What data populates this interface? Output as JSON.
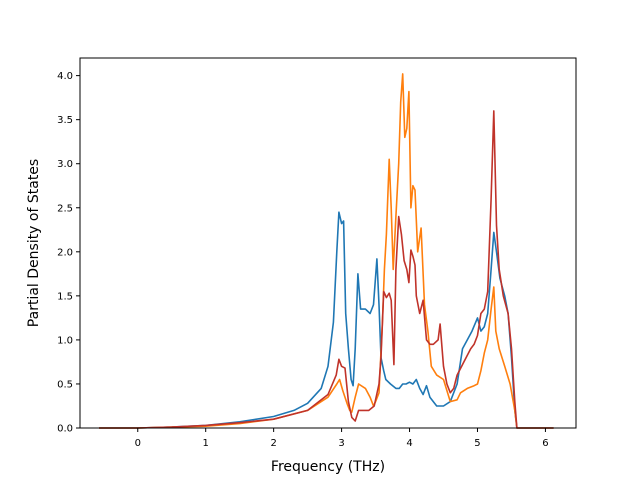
{
  "chart_data": {
    "type": "line",
    "title": "",
    "xlabel": "Frequency (THz)",
    "ylabel": "Partial Density of States",
    "xlim": [
      -0.85,
      6.45
    ],
    "ylim": [
      0.0,
      4.2
    ],
    "xticks": [
      0,
      1,
      2,
      3,
      4,
      5,
      6
    ],
    "yticks": [
      0.0,
      0.5,
      1.0,
      1.5,
      2.0,
      2.5,
      3.0,
      3.5,
      4.0
    ],
    "xtick_labels": [
      "0",
      "1",
      "2",
      "3",
      "4",
      "5",
      "6"
    ],
    "ytick_labels": [
      "0.0",
      "0.5",
      "1.0",
      "1.5",
      "2.0",
      "2.5",
      "3.0",
      "3.5",
      "4.0"
    ],
    "grid": false,
    "series": [
      {
        "color": "#1f77b4",
        "points": [
          [
            -0.57,
            0
          ],
          [
            0,
            0
          ],
          [
            0.5,
            0.01
          ],
          [
            1,
            0.03
          ],
          [
            1.5,
            0.07
          ],
          [
            2,
            0.13
          ],
          [
            2.3,
            0.2
          ],
          [
            2.5,
            0.28
          ],
          [
            2.7,
            0.45
          ],
          [
            2.8,
            0.7
          ],
          [
            2.88,
            1.2
          ],
          [
            2.93,
            2.0
          ],
          [
            2.96,
            2.45
          ],
          [
            3.0,
            2.32
          ],
          [
            3.03,
            2.35
          ],
          [
            3.06,
            1.3
          ],
          [
            3.1,
            0.9
          ],
          [
            3.14,
            0.55
          ],
          [
            3.17,
            0.48
          ],
          [
            3.2,
            0.9
          ],
          [
            3.24,
            1.75
          ],
          [
            3.28,
            1.35
          ],
          [
            3.35,
            1.35
          ],
          [
            3.42,
            1.3
          ],
          [
            3.47,
            1.4
          ],
          [
            3.52,
            1.92
          ],
          [
            3.55,
            1.4
          ],
          [
            3.58,
            0.8
          ],
          [
            3.62,
            0.65
          ],
          [
            3.65,
            0.55
          ],
          [
            3.72,
            0.5
          ],
          [
            3.8,
            0.45
          ],
          [
            3.85,
            0.45
          ],
          [
            3.9,
            0.5
          ],
          [
            3.95,
            0.5
          ],
          [
            4.0,
            0.52
          ],
          [
            4.05,
            0.5
          ],
          [
            4.1,
            0.55
          ],
          [
            4.15,
            0.45
          ],
          [
            4.2,
            0.38
          ],
          [
            4.25,
            0.48
          ],
          [
            4.3,
            0.35
          ],
          [
            4.4,
            0.25
          ],
          [
            4.5,
            0.25
          ],
          [
            4.6,
            0.3
          ],
          [
            4.7,
            0.5
          ],
          [
            4.78,
            0.9
          ],
          [
            4.85,
            1.0
          ],
          [
            4.92,
            1.1
          ],
          [
            5.0,
            1.25
          ],
          [
            5.05,
            1.1
          ],
          [
            5.1,
            1.15
          ],
          [
            5.15,
            1.3
          ],
          [
            5.2,
            1.8
          ],
          [
            5.24,
            2.22
          ],
          [
            5.28,
            2.0
          ],
          [
            5.33,
            1.7
          ],
          [
            5.4,
            1.5
          ],
          [
            5.45,
            1.3
          ],
          [
            5.5,
            0.8
          ],
          [
            5.55,
            0.2
          ],
          [
            5.58,
            0
          ],
          [
            6.12,
            0
          ]
        ]
      },
      {
        "color": "#ff7f0e",
        "points": [
          [
            -0.57,
            0
          ],
          [
            0,
            0
          ],
          [
            0.5,
            0.01
          ],
          [
            1,
            0.02
          ],
          [
            1.5,
            0.05
          ],
          [
            2,
            0.1
          ],
          [
            2.5,
            0.2
          ],
          [
            2.8,
            0.35
          ],
          [
            2.93,
            0.5
          ],
          [
            2.97,
            0.55
          ],
          [
            3.02,
            0.42
          ],
          [
            3.08,
            0.28
          ],
          [
            3.12,
            0.2
          ],
          [
            3.15,
            0.18
          ],
          [
            3.2,
            0.35
          ],
          [
            3.25,
            0.5
          ],
          [
            3.35,
            0.45
          ],
          [
            3.42,
            0.35
          ],
          [
            3.47,
            0.25
          ],
          [
            3.5,
            0.3
          ],
          [
            3.55,
            0.4
          ],
          [
            3.6,
            1.2
          ],
          [
            3.63,
            1.8
          ],
          [
            3.66,
            2.2
          ],
          [
            3.7,
            3.05
          ],
          [
            3.73,
            2.5
          ],
          [
            3.76,
            1.8
          ],
          [
            3.8,
            2.4
          ],
          [
            3.84,
            3.0
          ],
          [
            3.87,
            3.7
          ],
          [
            3.9,
            4.02
          ],
          [
            3.93,
            3.3
          ],
          [
            3.96,
            3.4
          ],
          [
            3.99,
            3.82
          ],
          [
            4.02,
            2.5
          ],
          [
            4.05,
            2.75
          ],
          [
            4.08,
            2.7
          ],
          [
            4.12,
            2.0
          ],
          [
            4.17,
            2.27
          ],
          [
            4.22,
            1.4
          ],
          [
            4.27,
            1.1
          ],
          [
            4.32,
            0.7
          ],
          [
            4.4,
            0.6
          ],
          [
            4.5,
            0.55
          ],
          [
            4.6,
            0.3
          ],
          [
            4.7,
            0.32
          ],
          [
            4.75,
            0.4
          ],
          [
            4.85,
            0.45
          ],
          [
            4.95,
            0.48
          ],
          [
            5.0,
            0.5
          ],
          [
            5.05,
            0.65
          ],
          [
            5.1,
            0.85
          ],
          [
            5.15,
            1.0
          ],
          [
            5.2,
            1.35
          ],
          [
            5.24,
            1.6
          ],
          [
            5.27,
            1.1
          ],
          [
            5.32,
            0.9
          ],
          [
            5.4,
            0.7
          ],
          [
            5.48,
            0.5
          ],
          [
            5.55,
            0.2
          ],
          [
            5.58,
            0
          ],
          [
            6.12,
            0
          ]
        ]
      },
      {
        "color": "#c0332a",
        "points": [
          [
            -0.57,
            0
          ],
          [
            0,
            0
          ],
          [
            0.5,
            0.01
          ],
          [
            1,
            0.03
          ],
          [
            1.5,
            0.06
          ],
          [
            2,
            0.1
          ],
          [
            2.5,
            0.2
          ],
          [
            2.8,
            0.38
          ],
          [
            2.92,
            0.6
          ],
          [
            2.96,
            0.78
          ],
          [
            3.0,
            0.7
          ],
          [
            3.05,
            0.68
          ],
          [
            3.1,
            0.3
          ],
          [
            3.15,
            0.12
          ],
          [
            3.2,
            0.08
          ],
          [
            3.25,
            0.2
          ],
          [
            3.3,
            0.2
          ],
          [
            3.4,
            0.2
          ],
          [
            3.48,
            0.25
          ],
          [
            3.55,
            0.5
          ],
          [
            3.58,
            0.8
          ],
          [
            3.62,
            1.55
          ],
          [
            3.66,
            1.48
          ],
          [
            3.7,
            1.53
          ],
          [
            3.73,
            1.45
          ],
          [
            3.77,
            0.72
          ],
          [
            3.8,
            1.8
          ],
          [
            3.84,
            2.4
          ],
          [
            3.88,
            2.2
          ],
          [
            3.92,
            1.9
          ],
          [
            3.96,
            1.8
          ],
          [
            3.99,
            1.65
          ],
          [
            4.02,
            2.02
          ],
          [
            4.05,
            1.95
          ],
          [
            4.08,
            1.85
          ],
          [
            4.1,
            1.5
          ],
          [
            4.15,
            1.3
          ],
          [
            4.2,
            1.45
          ],
          [
            4.25,
            1.0
          ],
          [
            4.3,
            0.95
          ],
          [
            4.35,
            0.95
          ],
          [
            4.42,
            1.0
          ],
          [
            4.45,
            1.18
          ],
          [
            4.5,
            0.7
          ],
          [
            4.55,
            0.5
          ],
          [
            4.6,
            0.4
          ],
          [
            4.65,
            0.45
          ],
          [
            4.7,
            0.6
          ],
          [
            4.8,
            0.75
          ],
          [
            4.9,
            0.9
          ],
          [
            4.95,
            0.95
          ],
          [
            5.0,
            1.05
          ],
          [
            5.05,
            1.3
          ],
          [
            5.1,
            1.35
          ],
          [
            5.15,
            1.55
          ],
          [
            5.2,
            2.6
          ],
          [
            5.24,
            3.6
          ],
          [
            5.28,
            2.3
          ],
          [
            5.32,
            1.8
          ],
          [
            5.38,
            1.5
          ],
          [
            5.45,
            1.3
          ],
          [
            5.5,
            0.9
          ],
          [
            5.55,
            0.3
          ],
          [
            5.58,
            0
          ],
          [
            6.12,
            0
          ]
        ]
      }
    ]
  }
}
